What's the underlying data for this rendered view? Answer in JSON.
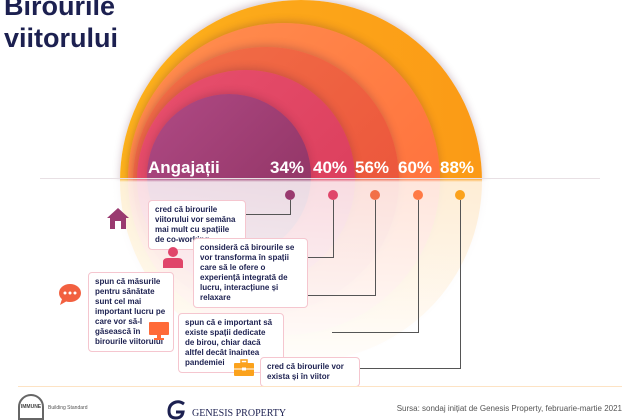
{
  "title": {
    "line1": "Birourile",
    "line2": "viitorului"
  },
  "header": {
    "label": "Angajații"
  },
  "items": [
    {
      "percent": "34%",
      "text": "cred că birourile viitorului vor semăna mai mult cu spațiile de co-working",
      "icon": "house-icon",
      "color": "#9a3a70"
    },
    {
      "percent": "40%",
      "text": "consideră că birourile se vor transforma în spații care să le ofere o experiență integrată de lucru, interacțiune și relaxare",
      "icon": "person-icon",
      "color": "#e0456a"
    },
    {
      "percent": "56%",
      "text": "spun că măsurile pentru sănătate sunt cel mai important lucru pe care vor să-l găsească în birourile viitorului",
      "icon": "chat-icon",
      "color": "#f06040"
    },
    {
      "percent": "60%",
      "text": "spun că e important să existe spații dedicate de birou, chiar dacă altfel decât înaintea pandemiei",
      "icon": "monitor-icon",
      "color": "#ff7a45"
    },
    {
      "percent": "88%",
      "text": "cred că birourile vor exista și în viitor",
      "icon": "briefcase-icon",
      "color": "#fba21c"
    }
  ],
  "footer": {
    "immune_logo": "IMMUNE",
    "immune_sub": "Building Standard",
    "genesis_logo": "GENESIS PROPERTY",
    "source": "Sursa: sondaj inițiat de Genesis Property, februarie-martie 2021"
  }
}
